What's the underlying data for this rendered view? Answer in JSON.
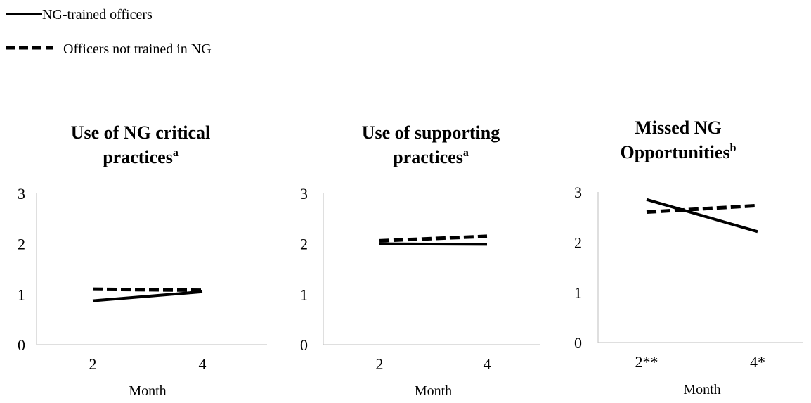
{
  "legend": {
    "items": [
      {
        "label": "NG-trained officers",
        "style": "solid"
      },
      {
        "label": "Officers not trained in NG",
        "style": "dashed"
      }
    ]
  },
  "chart_data": [
    {
      "type": "line",
      "title": "Use of NG critical practices",
      "title_line1": "Use of NG critical",
      "title_line2": "practices",
      "title_superscript": "a",
      "xlabel": "Month",
      "ylabel": "",
      "categories": [
        "2",
        "4"
      ],
      "ylim": [
        0,
        3
      ],
      "yticks": [
        "0",
        "1",
        "2",
        "3"
      ],
      "series": [
        {
          "name": "NG-trained officers",
          "values": [
            0.87,
            1.05
          ]
        },
        {
          "name": "Officers not trained in NG",
          "values": [
            1.1,
            1.08
          ]
        }
      ]
    },
    {
      "type": "line",
      "title": "Use of supporting practices",
      "title_line1": "Use of supporting",
      "title_line2": "practices",
      "title_superscript": "a",
      "xlabel": "Month",
      "ylabel": "",
      "categories": [
        "2",
        "4"
      ],
      "ylim": [
        0,
        3
      ],
      "yticks": [
        "0",
        "1",
        "2",
        "3"
      ],
      "series": [
        {
          "name": "NG-trained officers",
          "values": [
            2.0,
            1.99
          ]
        },
        {
          "name": "Officers not trained in NG",
          "values": [
            2.06,
            2.15
          ]
        }
      ]
    },
    {
      "type": "line",
      "title": "Missed NG Opportunities",
      "title_line1": "Missed NG",
      "title_line2": "Opportunities",
      "title_superscript": "b",
      "xlabel": "Month",
      "ylabel": "",
      "categories": [
        "2**",
        "4*"
      ],
      "ylim": [
        0,
        3
      ],
      "yticks": [
        "0",
        "1",
        "2",
        "3"
      ],
      "series": [
        {
          "name": "NG-trained officers",
          "values": [
            2.85,
            2.21
          ]
        },
        {
          "name": "Officers not trained in NG",
          "values": [
            2.6,
            2.73
          ]
        }
      ]
    }
  ]
}
